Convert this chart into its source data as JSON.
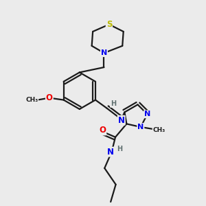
{
  "bg_color": "#ebebeb",
  "atom_colors": {
    "C": "#1a1a1a",
    "N": "#0000ee",
    "O": "#ee0000",
    "S": "#bbbb00",
    "H": "#607070"
  },
  "bond_color": "#1a1a1a",
  "bond_width": 1.6
}
